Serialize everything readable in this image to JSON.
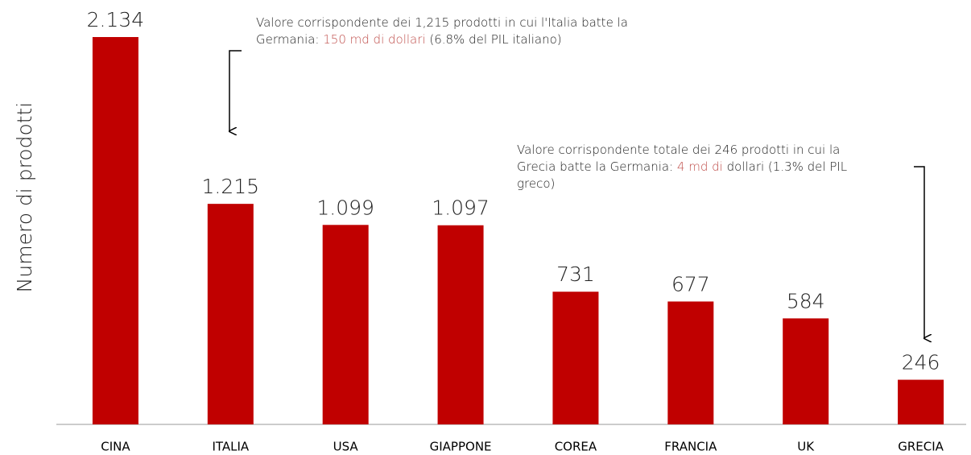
{
  "chart_data": {
    "type": "bar",
    "ylabel": "Numero di prodotti",
    "categories": [
      "CINA",
      "ITALIA",
      "USA",
      "GIAPPONE",
      "COREA",
      "FRANCIA",
      "UK",
      "GRECIA"
    ],
    "values": [
      2134,
      1215,
      1099,
      1097,
      731,
      677,
      584,
      246
    ],
    "value_labels": [
      "2.134",
      "1.215",
      "1.099",
      "1.097",
      "731",
      "677",
      "584",
      "246"
    ],
    "color": "#c00000",
    "annotations": [
      {
        "parts": [
          {
            "text": "Valore corrispondente dei 1,215 prodotti in cui l'Italia batte la Germania: "
          },
          {
            "text": "150  md di dollari",
            "color": "#c0504d"
          },
          {
            "text": " (6.8% del PIL italiano)"
          }
        ]
      },
      {
        "parts": [
          {
            "text": "Valore corrispondente totale dei 246 prodotti in cui la Grecia batte la Germania: "
          },
          {
            "text": "4 md di",
            "color": "#c0504d"
          },
          {
            "text": " dollari (1.3% del PIL greco)"
          }
        ]
      }
    ]
  }
}
